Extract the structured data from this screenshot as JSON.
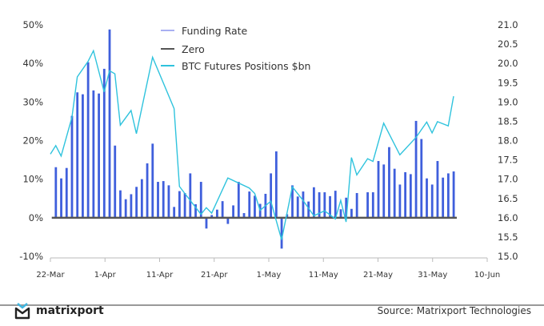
{
  "chart_data": {
    "type": "bar+line",
    "title": "",
    "legend_position": "top-center",
    "legend": [
      "Funding Rate",
      "Zero",
      "BTC Futures Positions $bn"
    ],
    "x_ticks": [
      "22-Mar",
      "1-Apr",
      "11-Apr",
      "21-Apr",
      "1-May",
      "11-May",
      "21-May",
      "31-May",
      "10-Jun"
    ],
    "y_left": {
      "ticks": [
        "-10%",
        "0%",
        "10%",
        "20%",
        "30%",
        "40%",
        "50%"
      ],
      "lim": [
        -10,
        50
      ],
      "unit": "%"
    },
    "y_right": {
      "ticks": [
        "15.0",
        "15.5",
        "16.0",
        "16.5",
        "17.0",
        "17.5",
        "18.0",
        "18.5",
        "19.0",
        "19.5",
        "20.0",
        "20.5",
        "21.0"
      ],
      "lim": [
        15.0,
        21.0
      ]
    },
    "colors": {
      "funding_rate": "#3f5fdc",
      "funding_legend": "#a9b0f2",
      "zero": "#555555",
      "positions": "#2fc3dd",
      "axis": "#bbbbbb"
    },
    "series": [
      {
        "name": "Funding Rate",
        "type": "bar",
        "axis": "left",
        "points": [
          [
            "23-Mar",
            13.1
          ],
          [
            "24-Mar",
            10.2
          ],
          [
            "25-Mar",
            12.9
          ],
          [
            "26-Mar",
            26.4
          ],
          [
            "27-Mar",
            32.5
          ],
          [
            "28-Mar",
            32.0
          ],
          [
            "29-Mar",
            40.3
          ],
          [
            "30-Mar",
            33.0
          ],
          [
            "31-Mar",
            32.2
          ],
          [
            "1-Apr",
            38.6
          ],
          [
            "2-Apr",
            48.8
          ],
          [
            "3-Apr",
            18.7
          ],
          [
            "4-Apr",
            7.1
          ],
          [
            "5-Apr",
            4.8
          ],
          [
            "6-Apr",
            6.1
          ],
          [
            "7-Apr",
            8.0
          ],
          [
            "8-Apr",
            10.0
          ],
          [
            "9-Apr",
            14.1
          ],
          [
            "10-Apr",
            19.2
          ],
          [
            "11-Apr",
            9.3
          ],
          [
            "12-Apr",
            9.5
          ],
          [
            "13-Apr",
            8.4
          ],
          [
            "14-Apr",
            2.8
          ],
          [
            "15-Apr",
            6.9
          ],
          [
            "16-Apr",
            6.4
          ],
          [
            "17-Apr",
            11.5
          ],
          [
            "18-Apr",
            3.5
          ],
          [
            "19-Apr",
            9.3
          ],
          [
            "20-Apr",
            -2.8
          ],
          [
            "21-Apr",
            0.7
          ],
          [
            "22-Apr",
            2.1
          ],
          [
            "23-Apr",
            4.3
          ],
          [
            "24-Apr",
            -1.6
          ],
          [
            "25-Apr",
            3.2
          ],
          [
            "26-Apr",
            9.3
          ],
          [
            "27-Apr",
            1.2
          ],
          [
            "28-Apr",
            6.8
          ],
          [
            "29-Apr",
            5.7
          ],
          [
            "30-Apr",
            3.6
          ],
          [
            "1-May",
            6.2
          ],
          [
            "2-May",
            11.5
          ],
          [
            "3-May",
            17.2
          ],
          [
            "4-May",
            -8.0
          ],
          [
            "5-May",
            0.9
          ],
          [
            "6-May",
            8.4
          ],
          [
            "7-May",
            5.5
          ],
          [
            "8-May",
            6.8
          ],
          [
            "9-May",
            4.2
          ],
          [
            "10-May",
            7.9
          ],
          [
            "11-May",
            6.6
          ],
          [
            "12-May",
            6.6
          ],
          [
            "13-May",
            5.6
          ],
          [
            "14-May",
            7.0
          ],
          [
            "15-May",
            2.2
          ],
          [
            "16-May",
            5.2
          ],
          [
            "17-May",
            2.3
          ],
          [
            "18-May",
            6.4
          ],
          [
            "20-May",
            6.6
          ],
          [
            "21-May",
            6.6
          ],
          [
            "22-May",
            14.7
          ],
          [
            "23-May",
            13.8
          ],
          [
            "24-May",
            18.3
          ],
          [
            "25-May",
            12.7
          ],
          [
            "26-May",
            8.6
          ],
          [
            "27-May",
            11.8
          ],
          [
            "28-May",
            11.3
          ],
          [
            "29-May",
            25.1
          ],
          [
            "30-May",
            20.4
          ],
          [
            "31-May",
            10.2
          ],
          [
            "1-Jun",
            8.6
          ],
          [
            "2-Jun",
            14.7
          ],
          [
            "3-Jun",
            10.4
          ],
          [
            "4-Jun",
            11.5
          ],
          [
            "5-Jun",
            12.0
          ]
        ]
      },
      {
        "name": "Zero",
        "type": "line",
        "axis": "left",
        "value": 0
      },
      {
        "name": "BTC Futures Positions $bn",
        "type": "line",
        "axis": "right",
        "points": [
          [
            "22-Mar",
            17.65
          ],
          [
            "23-Mar",
            17.87
          ],
          [
            "24-Mar",
            17.6
          ],
          [
            "26-Mar",
            18.6
          ],
          [
            "27-Mar",
            19.65
          ],
          [
            "29-Mar",
            20.05
          ],
          [
            "30-Mar",
            20.33
          ],
          [
            "1-Apr",
            19.26
          ],
          [
            "2-Apr",
            19.81
          ],
          [
            "3-Apr",
            19.73
          ],
          [
            "4-Apr",
            18.4
          ],
          [
            "6-Apr",
            18.78
          ],
          [
            "7-Apr",
            18.18
          ],
          [
            "10-Apr",
            20.16
          ],
          [
            "14-Apr",
            18.83
          ],
          [
            "15-Apr",
            16.81
          ],
          [
            "16-Apr",
            16.63
          ],
          [
            "19-Apr",
            16.09
          ],
          [
            "20-Apr",
            16.26
          ],
          [
            "21-Apr",
            16.12
          ],
          [
            "24-Apr",
            17.03
          ],
          [
            "28-Apr",
            16.77
          ],
          [
            "29-Apr",
            16.63
          ],
          [
            "30-Apr",
            16.19
          ],
          [
            "2-May",
            16.43
          ],
          [
            "4-May",
            15.43
          ],
          [
            "6-May",
            16.8
          ],
          [
            "8-May",
            16.45
          ],
          [
            "10-May",
            16.05
          ],
          [
            "12-May",
            16.18
          ],
          [
            "14-May",
            15.97
          ],
          [
            "15-May",
            16.45
          ],
          [
            "16-May",
            15.89
          ],
          [
            "17-May",
            17.56
          ],
          [
            "18-May",
            17.11
          ],
          [
            "20-May",
            17.53
          ],
          [
            "21-May",
            17.46
          ],
          [
            "23-May",
            18.45
          ],
          [
            "26-May",
            17.63
          ],
          [
            "29-May",
            18.08
          ],
          [
            "31-May",
            18.48
          ],
          [
            "1-Jun",
            18.2
          ],
          [
            "2-Jun",
            18.49
          ],
          [
            "4-Jun",
            18.38
          ],
          [
            "5-Jun",
            19.15
          ]
        ]
      }
    ]
  },
  "footer": {
    "brand": "matrixport",
    "source": "Source: Matrixport Technologies"
  }
}
